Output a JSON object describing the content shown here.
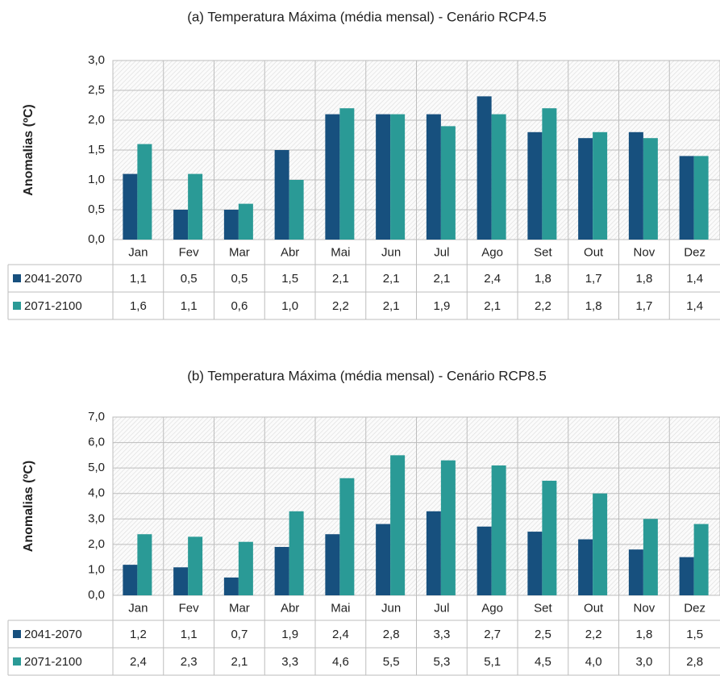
{
  "chart_data": [
    {
      "type": "bar",
      "title": "(a) Temperatura Máxima (média mensal) - Cenário RCP4.5",
      "y_label": "Anomalias (ºC)",
      "categories": [
        "Jan",
        "Fev",
        "Mar",
        "Abr",
        "Mai",
        "Jun",
        "Jul",
        "Ago",
        "Set",
        "Out",
        "Nov",
        "Dez"
      ],
      "series": [
        {
          "name": "2041-2070",
          "color": "#17507e",
          "values": [
            1.1,
            0.5,
            0.5,
            1.5,
            2.1,
            2.1,
            2.1,
            2.4,
            1.8,
            1.7,
            1.8,
            1.4
          ],
          "value_labels": [
            "1,1",
            "0,5",
            "0,5",
            "1,5",
            "2,1",
            "2,1",
            "2,1",
            "2,4",
            "1,8",
            "1,7",
            "1,8",
            "1,4"
          ]
        },
        {
          "name": "2071-2100",
          "color": "#2a9a96",
          "values": [
            1.6,
            1.1,
            0.6,
            1.0,
            2.2,
            2.1,
            1.9,
            2.1,
            2.2,
            1.8,
            1.7,
            1.4
          ],
          "value_labels": [
            "1,6",
            "1,1",
            "0,6",
            "1,0",
            "2,2",
            "2,1",
            "1,9",
            "2,1",
            "2,2",
            "1,8",
            "1,7",
            "1,4"
          ]
        }
      ],
      "ylim": [
        0,
        3
      ],
      "grid": true,
      "yticks": [
        {
          "value": 0,
          "label": "0,0"
        },
        {
          "value": 0.5,
          "label": "0,5"
        },
        {
          "value": 1,
          "label": "1,0"
        },
        {
          "value": 1.5,
          "label": "1,5"
        },
        {
          "value": 2,
          "label": "2,0"
        },
        {
          "value": 2.5,
          "label": "2,5"
        },
        {
          "value": 3,
          "label": "3,0"
        }
      ]
    },
    {
      "type": "bar",
      "title": "(b) Temperatura Máxima (média mensal) - Cenário RCP8.5",
      "y_label": "Anomalias (ºC)",
      "categories": [
        "Jan",
        "Fev",
        "Mar",
        "Abr",
        "Mai",
        "Jun",
        "Jul",
        "Ago",
        "Set",
        "Out",
        "Nov",
        "Dez"
      ],
      "series": [
        {
          "name": "2041-2070",
          "color": "#17507e",
          "values": [
            1.2,
            1.1,
            0.7,
            1.9,
            2.4,
            2.8,
            3.3,
            2.7,
            2.5,
            2.2,
            1.8,
            1.5
          ],
          "value_labels": [
            "1,2",
            "1,1",
            "0,7",
            "1,9",
            "2,4",
            "2,8",
            "3,3",
            "2,7",
            "2,5",
            "2,2",
            "1,8",
            "1,5"
          ]
        },
        {
          "name": "2071-2100",
          "color": "#2a9a96",
          "values": [
            2.4,
            2.3,
            2.1,
            3.3,
            4.6,
            5.5,
            5.3,
            5.1,
            4.5,
            4.0,
            3.0,
            2.8
          ],
          "value_labels": [
            "2,4",
            "2,3",
            "2,1",
            "3,3",
            "4,6",
            "5,5",
            "5,3",
            "5,1",
            "4,5",
            "4,0",
            "3,0",
            "2,8"
          ]
        }
      ],
      "ylim": [
        0,
        7
      ],
      "grid": true,
      "yticks": [
        {
          "value": 0,
          "label": "0,0"
        },
        {
          "value": 1,
          "label": "1,0"
        },
        {
          "value": 2,
          "label": "2,0"
        },
        {
          "value": 3,
          "label": "3,0"
        },
        {
          "value": 4,
          "label": "4,0"
        },
        {
          "value": 5,
          "label": "5,0"
        },
        {
          "value": 6,
          "label": "6,0"
        },
        {
          "value": 7,
          "label": "7,0"
        }
      ]
    }
  ]
}
